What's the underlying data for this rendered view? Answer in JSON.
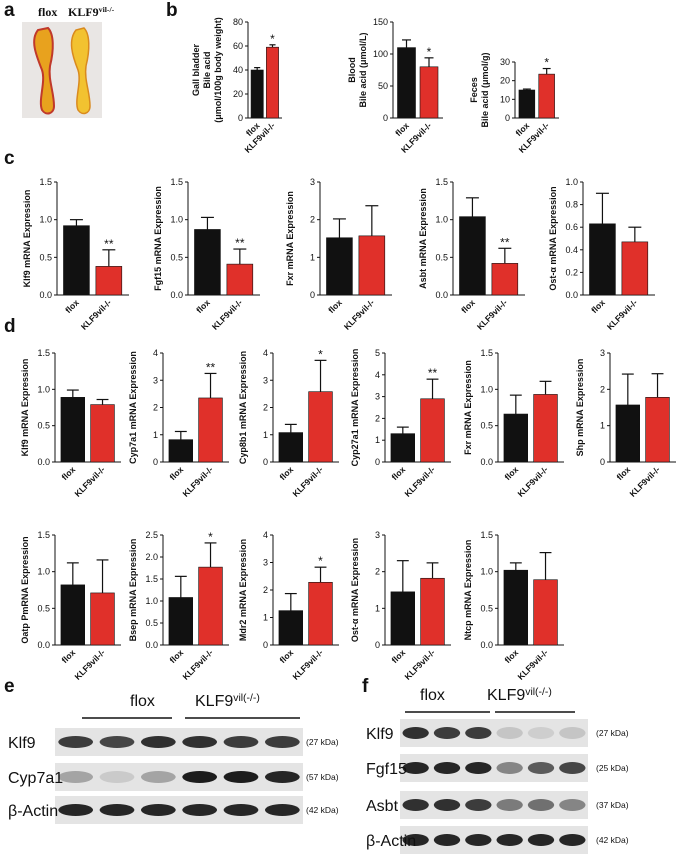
{
  "panel_letters": [
    "a",
    "b",
    "c",
    "d",
    "e",
    "f"
  ],
  "photo": {
    "labels": [
      {
        "text": "flox"
      },
      {
        "text": "KLF9",
        "sup": "vil-/-"
      }
    ]
  },
  "chart_data": [
    {
      "type": "bar",
      "y_label": [
        "Gall bladder",
        "Bile acid",
        "(μmol/100g body weight)"
      ],
      "categories": [
        "flox",
        "KLF9vil-/-"
      ],
      "values": [
        40,
        59
      ],
      "errors": [
        2,
        2
      ],
      "significance": [
        null,
        "*"
      ],
      "colors": [
        "#111111",
        "#e0302a"
      ],
      "ylim": [
        0,
        80
      ],
      "yticks": [
        0,
        20,
        40,
        60,
        80
      ]
    },
    {
      "type": "bar",
      "y_label": [
        "Blood",
        "Bile acid (μmol/L)"
      ],
      "categories": [
        "flox",
        "KLF9vil-/-"
      ],
      "values": [
        110,
        80
      ],
      "errors": [
        12,
        14
      ],
      "significance": [
        null,
        "*"
      ],
      "colors": [
        "#111111",
        "#e0302a"
      ],
      "ylim": [
        0,
        150
      ],
      "yticks": [
        0,
        50,
        100,
        150
      ]
    },
    {
      "type": "bar",
      "y_label": [
        "Feces",
        "Bile acid (μmol/g)"
      ],
      "categories": [
        "flox",
        "KLF9vil-/-"
      ],
      "values": [
        15,
        23.5
      ],
      "errors": [
        0.5,
        3
      ],
      "significance": [
        null,
        "*"
      ],
      "colors": [
        "#111111",
        "#e0302a"
      ],
      "ylim": [
        0,
        30
      ],
      "yticks": [
        0,
        10,
        20,
        30
      ]
    },
    {
      "type": "bar",
      "y_label": "Klf9 mRNA Expression",
      "categories": [
        "flox",
        "KLF9vil-/-"
      ],
      "values": [
        0.92,
        0.38
      ],
      "errors": [
        0.08,
        0.22
      ],
      "significance": [
        null,
        "**"
      ],
      "colors": [
        "#111111",
        "#e0302a"
      ],
      "ylim": [
        0,
        1.5
      ],
      "yticks": [
        {
          "value": 0,
          "label": "0.0"
        },
        0.5,
        {
          "value": 1,
          "label": "1.0"
        },
        1.5
      ]
    },
    {
      "type": "bar",
      "y_label": "Fgf15 mRNA Expression",
      "categories": [
        "flox",
        "KLF9vil-/-"
      ],
      "values": [
        0.87,
        0.41
      ],
      "errors": [
        0.16,
        0.2
      ],
      "significance": [
        null,
        "**"
      ],
      "colors": [
        "#111111",
        "#e0302a"
      ],
      "ylim": [
        0,
        1.5
      ],
      "yticks": [
        {
          "value": 0,
          "label": "0.0"
        },
        0.5,
        {
          "value": 1,
          "label": "1.0"
        },
        1.5
      ]
    },
    {
      "type": "bar",
      "y_label": "Fxr mRNA Expression",
      "categories": [
        "flox",
        "KLF9vil-/-"
      ],
      "values": [
        1.52,
        1.57
      ],
      "errors": [
        0.5,
        0.8
      ],
      "significance": [
        null,
        null
      ],
      "colors": [
        "#111111",
        "#e0302a"
      ],
      "ylim": [
        0,
        3
      ],
      "yticks": [
        0,
        1,
        2,
        3
      ]
    },
    {
      "type": "bar",
      "y_label": "Asbt mRNA Expression",
      "categories": [
        "flox",
        "KLF9vil-/-"
      ],
      "values": [
        1.04,
        0.42
      ],
      "errors": [
        0.25,
        0.2
      ],
      "significance": [
        null,
        "**"
      ],
      "colors": [
        "#111111",
        "#e0302a"
      ],
      "ylim": [
        0,
        1.5
      ],
      "yticks": [
        {
          "value": 0,
          "label": "0.0"
        },
        0.5,
        {
          "value": 1,
          "label": "1.0"
        },
        1.5
      ]
    },
    {
      "type": "bar",
      "y_label": "Ost-α mRNA Expression",
      "categories": [
        "flox",
        "KLF9vil-/-"
      ],
      "values": [
        0.63,
        0.47
      ],
      "errors": [
        0.27,
        0.13
      ],
      "significance": [
        null,
        null
      ],
      "colors": [
        "#111111",
        "#e0302a"
      ],
      "ylim": [
        0,
        1
      ],
      "yticks": [
        {
          "value": 0,
          "label": "0.0"
        },
        0.2,
        0.4,
        0.6,
        0.8,
        {
          "value": 1,
          "label": "1.0"
        }
      ]
    },
    {
      "type": "bar",
      "y_label": "Klf9 mRNA Expression",
      "categories": [
        "flox",
        "KLF9vil-/-"
      ],
      "values": [
        0.89,
        0.79
      ],
      "errors": [
        0.1,
        0.07
      ],
      "significance": [
        null,
        null
      ],
      "colors": [
        "#111111",
        "#e0302a"
      ],
      "ylim": [
        0,
        1.5
      ],
      "yticks": [
        {
          "value": 0,
          "label": "0.0"
        },
        0.5,
        {
          "value": 1,
          "label": "1.0"
        },
        1.5
      ]
    },
    {
      "type": "bar",
      "y_label": "Cyp7a1 mRNA Expression",
      "categories": [
        "flox",
        "KLF9vil-/-"
      ],
      "values": [
        0.82,
        2.35
      ],
      "errors": [
        0.3,
        0.9
      ],
      "significance": [
        null,
        "**"
      ],
      "colors": [
        "#111111",
        "#e0302a"
      ],
      "ylim": [
        0,
        4
      ],
      "yticks": [
        0,
        1,
        2,
        3,
        4
      ]
    },
    {
      "type": "bar",
      "y_label": "Cyp8b1 mRNA Expression",
      "categories": [
        "flox",
        "KLF9vil-/-"
      ],
      "values": [
        1.08,
        2.58
      ],
      "errors": [
        0.3,
        1.15
      ],
      "significance": [
        null,
        "*"
      ],
      "colors": [
        "#111111",
        "#e0302a"
      ],
      "ylim": [
        0,
        4
      ],
      "yticks": [
        0,
        1,
        2,
        3,
        4
      ]
    },
    {
      "type": "bar",
      "y_label": "Cyp27a1 mRNA Expression",
      "categories": [
        "flox",
        "KLF9vil-/-"
      ],
      "values": [
        1.3,
        2.9
      ],
      "errors": [
        0.3,
        0.9
      ],
      "significance": [
        null,
        "**"
      ],
      "colors": [
        "#111111",
        "#e0302a"
      ],
      "ylim": [
        0,
        5
      ],
      "yticks": [
        0,
        1,
        2,
        3,
        4,
        5
      ]
    },
    {
      "type": "bar",
      "y_label": "Fxr mRNA Expression",
      "categories": [
        "flox",
        "KLF9vil-/-"
      ],
      "values": [
        0.66,
        0.93
      ],
      "errors": [
        0.26,
        0.18
      ],
      "significance": [
        null,
        null
      ],
      "colors": [
        "#111111",
        "#e0302a"
      ],
      "ylim": [
        0,
        1.5
      ],
      "yticks": [
        {
          "value": 0,
          "label": "0.0"
        },
        0.5,
        {
          "value": 1,
          "label": "1.0"
        },
        1.5
      ]
    },
    {
      "type": "bar",
      "y_label": "Shp mRNA Expression",
      "categories": [
        "flox",
        "KLF9vil-/-"
      ],
      "values": [
        1.57,
        1.78
      ],
      "errors": [
        0.85,
        0.65
      ],
      "significance": [
        null,
        null
      ],
      "colors": [
        "#111111",
        "#e0302a"
      ],
      "ylim": [
        0,
        3
      ],
      "yticks": [
        0,
        1,
        2,
        3
      ]
    },
    {
      "type": "bar",
      "y_label": "Oatp PmRNA Expression",
      "categories": [
        "flox",
        "KLF9vil-/-"
      ],
      "values": [
        0.82,
        0.71
      ],
      "errors": [
        0.3,
        0.45
      ],
      "significance": [
        null,
        null
      ],
      "colors": [
        "#111111",
        "#e0302a"
      ],
      "ylim": [
        0,
        1.5
      ],
      "yticks": [
        {
          "value": 0,
          "label": "0.0"
        },
        0.5,
        {
          "value": 1,
          "label": "1.0"
        },
        1.5
      ]
    },
    {
      "type": "bar",
      "y_label": "Bsep mRNA Expression",
      "categories": [
        "flox",
        "KLF9vil-/-"
      ],
      "values": [
        1.08,
        1.77
      ],
      "errors": [
        0.48,
        0.55
      ],
      "significance": [
        null,
        "*"
      ],
      "colors": [
        "#111111",
        "#e0302a"
      ],
      "ylim": [
        0,
        2.5
      ],
      "yticks": [
        {
          "value": 0,
          "label": "0.0"
        },
        0.5,
        {
          "value": 1,
          "label": "1.0"
        },
        1.5,
        {
          "value": 2,
          "label": "2.0"
        },
        2.5
      ]
    },
    {
      "type": "bar",
      "y_label": "Mdr2 mRNA Expression",
      "categories": [
        "flox",
        "KLF9vil-/-"
      ],
      "values": [
        1.25,
        2.28
      ],
      "errors": [
        0.62,
        0.55
      ],
      "significance": [
        null,
        "*"
      ],
      "colors": [
        "#111111",
        "#e0302a"
      ],
      "ylim": [
        0,
        4
      ],
      "yticks": [
        0,
        1,
        2,
        3,
        4
      ]
    },
    {
      "type": "bar",
      "y_label": "Ost-α mRNA Expression",
      "categories": [
        "flox",
        "KLF9vil-/-"
      ],
      "values": [
        1.45,
        1.82
      ],
      "errors": [
        0.85,
        0.42
      ],
      "significance": [
        null,
        null
      ],
      "colors": [
        "#111111",
        "#e0302a"
      ],
      "ylim": [
        0,
        3
      ],
      "yticks": [
        0,
        1,
        2,
        3
      ]
    },
    {
      "type": "bar",
      "y_label": "Ntcp mRNA Expression",
      "categories": [
        "flox",
        "KLF9vil-/-"
      ],
      "values": [
        1.02,
        0.89
      ],
      "errors": [
        0.1,
        0.37
      ],
      "significance": [
        null,
        null
      ],
      "colors": [
        "#111111",
        "#e0302a"
      ],
      "ylim": [
        0,
        1.5
      ],
      "yticks": [
        {
          "value": 0,
          "label": "0.0"
        },
        0.5,
        {
          "value": 1,
          "label": "1.0"
        },
        1.5
      ]
    }
  ],
  "blots": [
    {
      "groups": [
        {
          "text": "flox"
        },
        {
          "text": "KLF9",
          "sup": "vil(-/-)"
        }
      ],
      "rows": [
        {
          "protein": "Klf9",
          "size": "(27 kDa)"
        },
        {
          "protein": "Cyp7a1",
          "size": "(57 kDa)"
        },
        {
          "protein": "β-Actin",
          "size": "(42 kDa)"
        }
      ]
    },
    {
      "groups": [
        {
          "text": "flox"
        },
        {
          "text": "KLF9",
          "sup": "vil(-/-)"
        }
      ],
      "rows": [
        {
          "protein": "Klf9",
          "size": "(27 kDa)"
        },
        {
          "protein": "Fgf15",
          "size": "(25 kDa)"
        },
        {
          "protein": "Asbt",
          "size": "(37 kDa)"
        },
        {
          "protein": "β-Actin",
          "size": "(42 kDa)"
        }
      ]
    }
  ]
}
